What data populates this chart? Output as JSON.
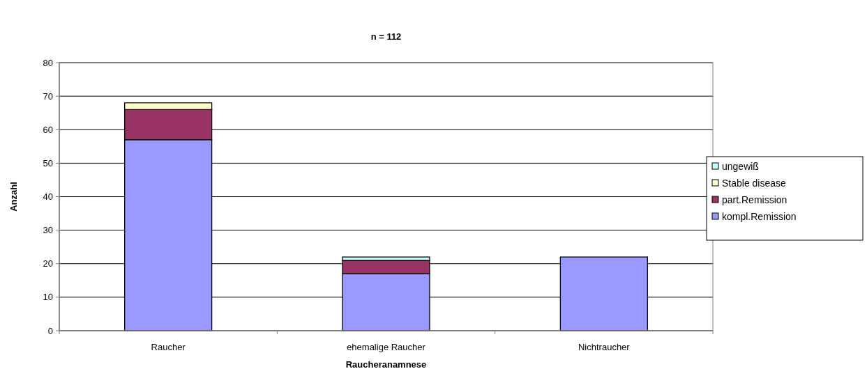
{
  "chart_data": {
    "type": "bar",
    "title": "n = 112",
    "xlabel": "Raucheranamnese",
    "ylabel": "Anzahl",
    "categories": [
      "Raucher",
      "ehemalige Raucher",
      "Nichtraucher"
    ],
    "series": [
      {
        "name": "kompl.Remission",
        "color": "#9999ff",
        "values": [
          57,
          17,
          22
        ]
      },
      {
        "name": "part.Remission",
        "color": "#993366",
        "values": [
          9,
          4,
          0
        ]
      },
      {
        "name": "Stable disease",
        "color": "#ffffcc",
        "values": [
          2,
          0,
          0
        ]
      },
      {
        "name": "ungewiß",
        "color": "#ccffff",
        "values": [
          0,
          1,
          0
        ]
      }
    ],
    "stacked": true,
    "ylim": [
      0,
      80
    ],
    "yticks": [
      0,
      10,
      20,
      30,
      40,
      50,
      60,
      70,
      80
    ],
    "grid": "y",
    "legend": "right"
  }
}
